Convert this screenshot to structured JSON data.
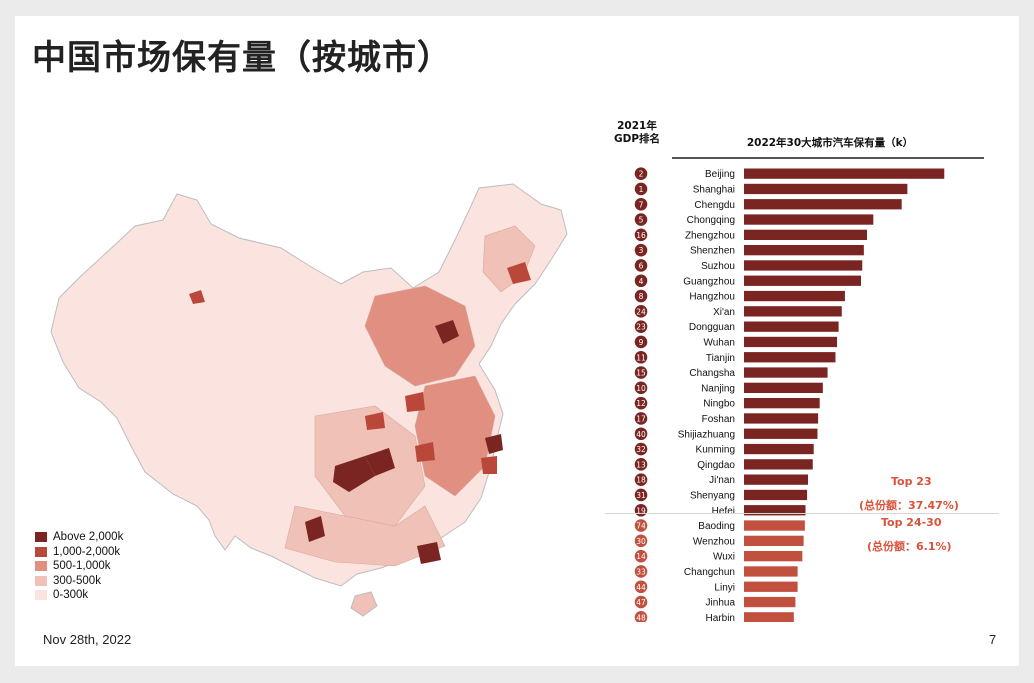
{
  "title": "中国市场保有量（按城市）",
  "footer": {
    "date": "Nov 28th, 2022",
    "page": "7"
  },
  "legend": [
    {
      "label": "Above 2,000k",
      "color": "#7a2522"
    },
    {
      "label": "1,000-2,000k",
      "color": "#b9473a"
    },
    {
      "label": "500-1,000k",
      "color": "#e08f80"
    },
    {
      "label": "300-500k",
      "color": "#f0c1b6"
    },
    {
      "label": "0-300k",
      "color": "#fbe4df"
    }
  ],
  "chart": {
    "gdp_header": [
      "2021年",
      "GDP排名"
    ],
    "title": "2022年30大城市汽车保有量（k）"
  },
  "annotations": {
    "top23": "Top 23",
    "top23_share": "(总份额：37.47%)",
    "top24_30": "Top 24-30",
    "top24_30_share": "(总份额：6.1%)"
  },
  "chart_data": {
    "type": "bar",
    "orientation": "horizontal",
    "title": "2022年30大城市汽车保有量（k）",
    "categories": [
      "Beijing",
      "Shanghai",
      "Chengdu",
      "Chongqing",
      "Zhengzhou",
      "Shenzhen",
      "Suzhou",
      "Guangzhou",
      "Hangzhou",
      "Xi'an",
      "Dongguan",
      "Wuhan",
      "Tianjin",
      "Changsha",
      "Nanjing",
      "Ningbo",
      "Foshan",
      "Shijiazhuang",
      "Kunming",
      "Qingdao",
      "Ji'nan",
      "Shenyang",
      "Hefei",
      "Baoding",
      "Wenzhou",
      "Wuxi",
      "Changchun",
      "Linyi",
      "Jinhua",
      "Harbin"
    ],
    "gdp_rank": [
      "2",
      "1",
      "7",
      "5",
      "16",
      "3",
      "6",
      "4",
      "8",
      "24",
      "23",
      "9",
      "11",
      "15",
      "10",
      "12",
      "17",
      "40",
      "32",
      "13",
      "18",
      "31",
      "19",
      "74",
      "30",
      "14",
      "33",
      "44",
      "47",
      "48"
    ],
    "values": [
      6350,
      5180,
      5000,
      4100,
      3900,
      3800,
      3750,
      3710,
      3200,
      3100,
      3000,
      2950,
      2900,
      2650,
      2500,
      2400,
      2350,
      2330,
      2210,
      2180,
      2030,
      2000,
      1950,
      1930,
      1890,
      1850,
      1700,
      1700,
      1630,
      1580
    ],
    "groups": [
      {
        "name": "Top 23",
        "from": 0,
        "to": 22,
        "color": "#7a2522"
      },
      {
        "name": "Top 24-30",
        "from": 23,
        "to": 29,
        "color": "#c2503f"
      }
    ],
    "xlim": [
      0,
      6500
    ],
    "xlabel": "",
    "ylabel": ""
  }
}
